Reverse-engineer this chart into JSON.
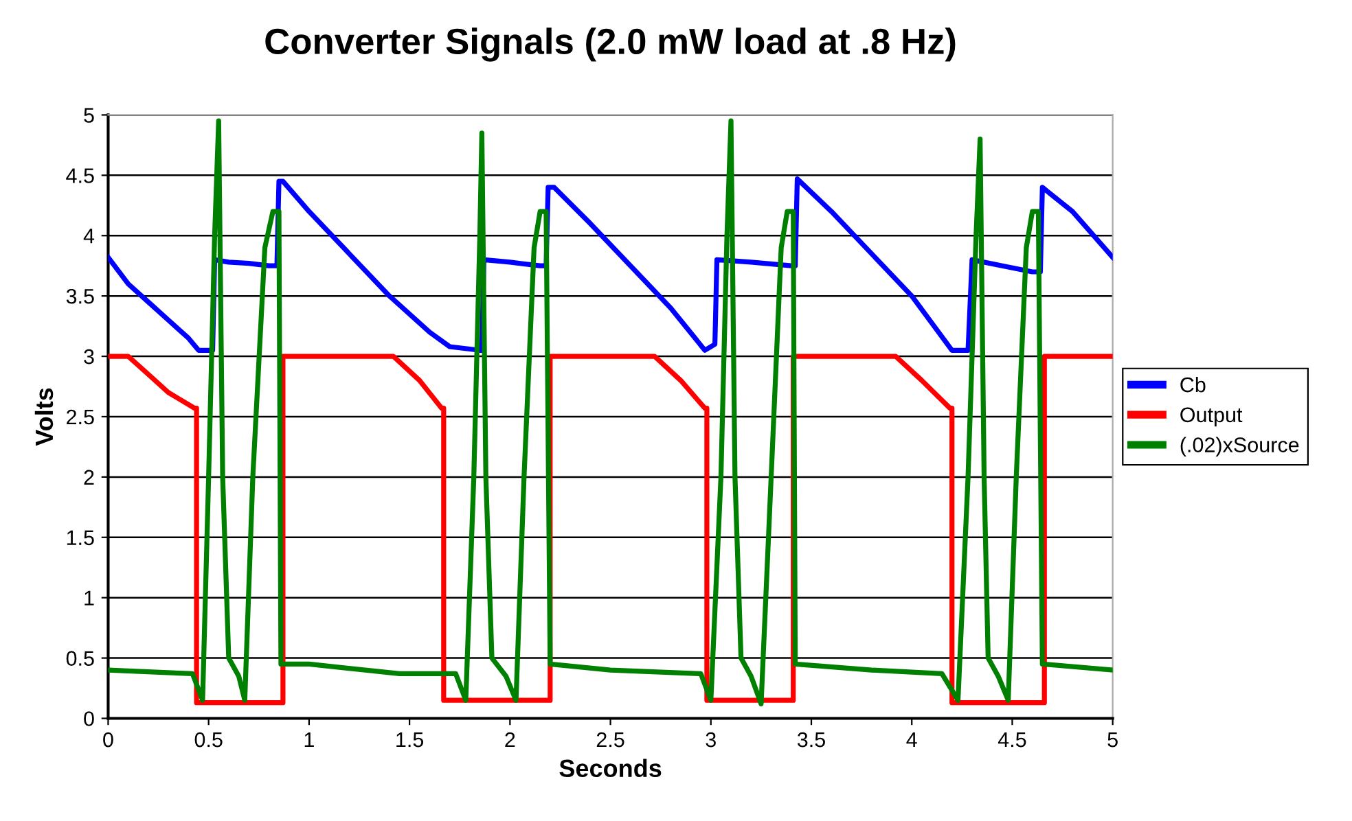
{
  "chart_data": {
    "type": "line",
    "title": "Converter Signals (2.0 mW load at .8 Hz)",
    "xlabel": "Seconds",
    "ylabel": "Volts",
    "xlim": [
      0,
      5
    ],
    "ylim": [
      0,
      5
    ],
    "xticks": [
      0,
      0.5,
      1,
      1.5,
      2,
      2.5,
      3,
      3.5,
      4,
      4.5,
      5
    ],
    "yticks": [
      0,
      0.5,
      1,
      1.5,
      2,
      2.5,
      3,
      3.5,
      4,
      4.5,
      5
    ],
    "grid": "y",
    "legend": "right",
    "marker": "none",
    "line_style": "solid",
    "series": [
      {
        "name": "Cb",
        "color": "#0000ff",
        "x": [
          0,
          0.1,
          0.2,
          0.3,
          0.4,
          0.45,
          0.5,
          0.52,
          0.53,
          0.6,
          0.7,
          0.8,
          0.84,
          0.85,
          0.87,
          1.0,
          1.2,
          1.4,
          1.6,
          1.7,
          1.85,
          1.86,
          1.87,
          2.0,
          2.15,
          2.18,
          2.19,
          2.22,
          2.4,
          2.6,
          2.8,
          2.97,
          3.02,
          3.03,
          3.2,
          3.4,
          3.42,
          3.43,
          3.6,
          3.8,
          4.0,
          4.2,
          4.28,
          4.3,
          4.45,
          4.6,
          4.64,
          4.65,
          4.8,
          5.0
        ],
        "values": [
          3.82,
          3.6,
          3.45,
          3.3,
          3.15,
          3.05,
          3.05,
          3.05,
          3.8,
          3.78,
          3.77,
          3.75,
          3.75,
          4.45,
          4.45,
          4.2,
          3.85,
          3.5,
          3.2,
          3.08,
          3.05,
          3.05,
          3.8,
          3.78,
          3.75,
          3.75,
          4.4,
          4.4,
          4.1,
          3.75,
          3.4,
          3.05,
          3.1,
          3.8,
          3.78,
          3.75,
          3.75,
          4.47,
          4.2,
          3.85,
          3.5,
          3.05,
          3.05,
          3.8,
          3.75,
          3.7,
          3.7,
          4.4,
          4.2,
          3.82
        ]
      },
      {
        "name": "Output",
        "color": "#ff0000",
        "x": [
          0,
          0.1,
          0.2,
          0.3,
          0.43,
          0.44,
          0.44,
          0.86,
          0.87,
          0.87,
          1.42,
          1.55,
          1.66,
          1.67,
          1.67,
          2.2,
          2.2,
          2.72,
          2.85,
          2.97,
          2.98,
          2.98,
          3.41,
          3.41,
          3.92,
          4.05,
          4.19,
          4.2,
          4.2,
          4.66,
          4.66,
          5.0
        ],
        "values": [
          3.0,
          3.0,
          2.85,
          2.7,
          2.57,
          2.57,
          0.13,
          0.13,
          0.13,
          3.0,
          3.0,
          2.8,
          2.57,
          2.57,
          0.15,
          0.15,
          3.0,
          3.0,
          2.8,
          2.57,
          2.57,
          0.15,
          0.15,
          3.0,
          3.0,
          2.8,
          2.57,
          2.57,
          0.13,
          0.13,
          3.0,
          3.0
        ]
      },
      {
        "name": "(.02)xSource",
        "color": "#008000",
        "x": [
          0,
          0.42,
          0.47,
          0.5,
          0.53,
          0.55,
          0.57,
          0.6,
          0.65,
          0.68,
          0.72,
          0.78,
          0.82,
          0.85,
          0.86,
          1.0,
          1.45,
          1.73,
          1.78,
          1.82,
          1.85,
          1.86,
          1.88,
          1.91,
          1.98,
          2.03,
          2.07,
          2.12,
          2.15,
          2.18,
          2.2,
          2.5,
          2.95,
          3.0,
          3.05,
          3.08,
          3.1,
          3.12,
          3.15,
          3.2,
          3.25,
          3.3,
          3.35,
          3.38,
          3.41,
          3.42,
          3.8,
          4.15,
          4.23,
          4.28,
          4.32,
          4.34,
          4.36,
          4.38,
          4.43,
          4.48,
          4.52,
          4.57,
          4.6,
          4.63,
          4.65,
          5.0
        ],
        "values": [
          0.4,
          0.37,
          0.15,
          2.0,
          4.0,
          4.95,
          2.0,
          0.5,
          0.35,
          0.15,
          2.0,
          3.9,
          4.2,
          4.2,
          0.45,
          0.45,
          0.37,
          0.37,
          0.15,
          2.0,
          4.0,
          4.85,
          2.0,
          0.5,
          0.35,
          0.15,
          2.0,
          3.9,
          4.2,
          4.2,
          0.45,
          0.4,
          0.37,
          0.15,
          2.0,
          4.0,
          4.95,
          2.0,
          0.5,
          0.35,
          0.12,
          2.0,
          3.9,
          4.2,
          4.2,
          0.45,
          0.4,
          0.37,
          0.15,
          2.0,
          4.0,
          4.8,
          2.0,
          0.5,
          0.35,
          0.15,
          2.0,
          3.9,
          4.2,
          4.2,
          0.45,
          0.4
        ]
      }
    ]
  }
}
